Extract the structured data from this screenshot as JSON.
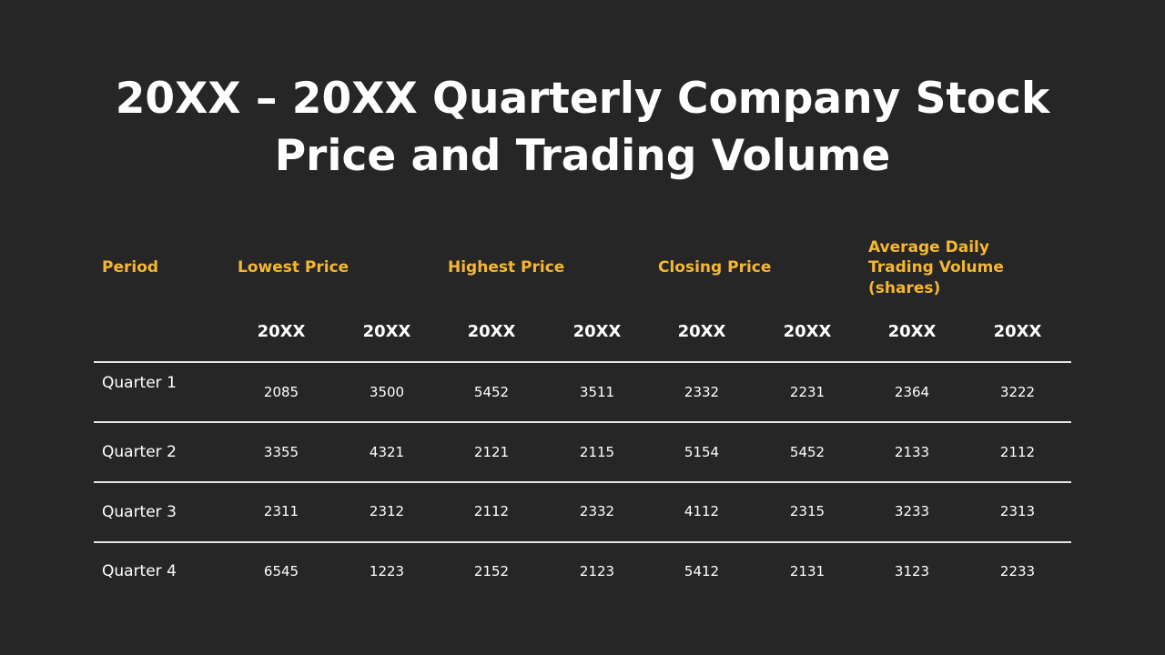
{
  "title": {
    "line1": "20XX – 20XX Quarterly Company Stock",
    "line2": "Price and Trading Volume"
  },
  "table": {
    "headers": {
      "period": "Period",
      "lowest": "Lowest Price",
      "highest": "Highest Price",
      "closing": "Closing Price",
      "volume_l1": "Average Daily",
      "volume_l2": "Trading Volume",
      "volume_l3": "(shares)"
    },
    "years": [
      "20XX",
      "20XX",
      "20XX",
      "20XX",
      "20XX",
      "20XX",
      "20XX",
      "20XX"
    ],
    "rows": [
      {
        "label": "Quarter 1",
        "values": [
          "2085",
          "3500",
          "5452",
          "3511",
          "2332",
          "2231",
          "2364",
          "3222"
        ]
      },
      {
        "label": "Quarter 2",
        "values": [
          "3355",
          "4321",
          "2121",
          "2115",
          "5154",
          "5452",
          "2133",
          "2112"
        ]
      },
      {
        "label": "Quarter 3",
        "values": [
          "2311",
          "2312",
          "2112",
          "2332",
          "4112",
          "2315",
          "3233",
          "2313"
        ]
      },
      {
        "label": "Quarter 4",
        "values": [
          "6545",
          "1223",
          "2152",
          "2123",
          "5412",
          "2131",
          "3123",
          "2233"
        ]
      }
    ]
  },
  "colors": {
    "background": "#262626",
    "header_accent": "#f5b731",
    "text": "#ffffff",
    "rule": "#e6e6e6"
  }
}
